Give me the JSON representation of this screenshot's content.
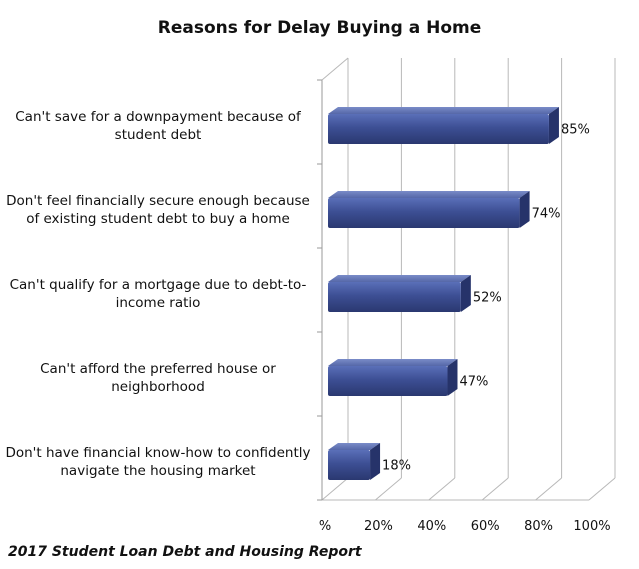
{
  "chart_data": {
    "type": "bar",
    "orientation": "horizontal",
    "title": "Reasons for Delay Buying a Home",
    "categories": [
      [
        "Can't save for a downpayment because of",
        "student debt"
      ],
      [
        "Don't feel financially secure enough because",
        "of existing student debt to buy a home"
      ],
      [
        "Can't qualify for a mortgage due to debt-to-",
        "income ratio"
      ],
      [
        "Can't afford the preferred house or",
        "neighborhood"
      ],
      [
        "Don't have financial know-how to confidently",
        "navigate the housing market"
      ]
    ],
    "values": [
      85,
      74,
      52,
      47,
      18
    ],
    "value_labels": [
      "85%",
      "74%",
      "52%",
      "47%",
      "18%"
    ],
    "x_ticks": [
      "%",
      "20%",
      "40%",
      "60%",
      "80%",
      "100%"
    ],
    "xlim": [
      0,
      100
    ],
    "grid": true,
    "bar_color": "#3d4f94"
  },
  "footer": "2017 Student Loan Debt and Housing Report"
}
